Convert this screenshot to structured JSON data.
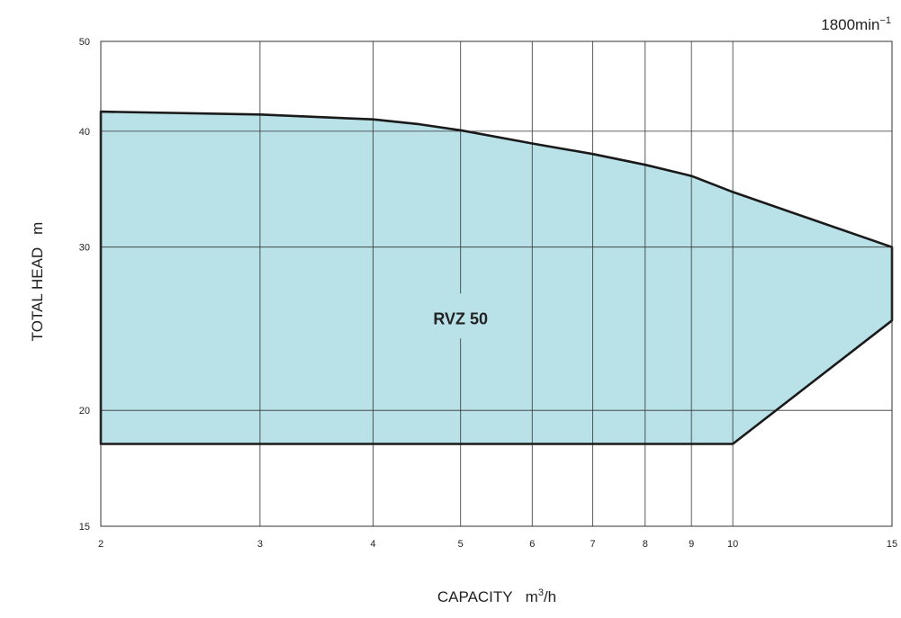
{
  "chart_data": {
    "type": "area",
    "title": "",
    "speed_label": "1800min",
    "speed_exponent": "−1",
    "xlabel": "CAPACITY",
    "xunit_base": "m",
    "xunit_sup": "3",
    "xunit_tail": "/h",
    "ylabel": "TOTAL HEAD",
    "yunit": "m",
    "x_scale": "log",
    "y_scale": "log",
    "xlim": [
      2,
      15
    ],
    "ylim": [
      15,
      50
    ],
    "x_ticks": [
      2,
      3,
      4,
      5,
      6,
      7,
      8,
      9,
      10,
      15
    ],
    "x_tick_labels": [
      "2",
      "3",
      "4",
      "5",
      "6",
      "7",
      "8",
      "9",
      "10",
      "15"
    ],
    "y_ticks": [
      15,
      20,
      30,
      40,
      50
    ],
    "y_tick_labels": [
      "15",
      "20",
      "30",
      "40",
      "50"
    ],
    "grid": true,
    "region": {
      "name": "RVZ 50",
      "fill_color": "#b8e2e8",
      "outline_color": "#1a1a1a",
      "label_x": 5,
      "label_y": 25,
      "upper_curve": [
        {
          "x": 2,
          "y": 42
        },
        {
          "x": 3,
          "y": 41.7
        },
        {
          "x": 4,
          "y": 41.2
        },
        {
          "x": 4.5,
          "y": 40.7
        },
        {
          "x": 5,
          "y": 40.1
        },
        {
          "x": 6,
          "y": 38.8
        },
        {
          "x": 7,
          "y": 37.8
        },
        {
          "x": 8,
          "y": 36.8
        },
        {
          "x": 9,
          "y": 35.8
        },
        {
          "x": 10,
          "y": 34.4
        },
        {
          "x": 15,
          "y": 30
        }
      ],
      "right_bottom": {
        "x": 15,
        "y": 25
      },
      "lower_break": {
        "x": 10,
        "y": 18.4
      },
      "lower_left": {
        "x": 2,
        "y": 18.4
      }
    }
  }
}
